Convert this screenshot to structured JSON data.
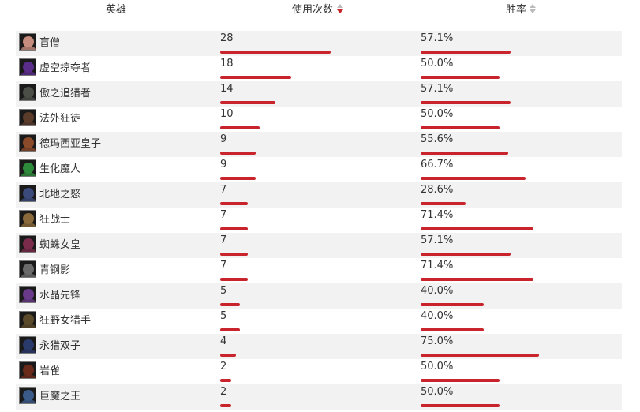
{
  "table": {
    "headers": {
      "hero": "英雄",
      "usage": "使用次数",
      "winrate": "胜率"
    },
    "sort": {
      "usage": "descending",
      "winrate": "none"
    },
    "colors": {
      "bar": "#c9242b",
      "row_alt": "#f2f2f2",
      "sort_active": "#c9242b",
      "sort_inactive": "#bbbbbb"
    },
    "rows": [
      {
        "hero": "盲僧",
        "usage": "28",
        "usage_fraction": 0.44,
        "winrate": "57.1%",
        "winrate_fraction": 0.571,
        "icon": "lee-sin-portrait",
        "tone": "#c58b7c"
      },
      {
        "hero": "虚空掠夺者",
        "usage": "18",
        "usage_fraction": 0.283,
        "winrate": "50.0%",
        "winrate_fraction": 0.5,
        "icon": "khazix-portrait",
        "tone": "#5a2d8a"
      },
      {
        "hero": "傲之追猎者",
        "usage": "14",
        "usage_fraction": 0.22,
        "winrate": "57.1%",
        "winrate_fraction": 0.571,
        "icon": "rengar-portrait",
        "tone": "#4b4e47"
      },
      {
        "hero": "法外狂徒",
        "usage": "10",
        "usage_fraction": 0.157,
        "winrate": "50.0%",
        "winrate_fraction": 0.5,
        "icon": "graves-portrait",
        "tone": "#5b3b2a"
      },
      {
        "hero": "德玛西亚皇子",
        "usage": "9",
        "usage_fraction": 0.141,
        "winrate": "55.6%",
        "winrate_fraction": 0.556,
        "icon": "jarvan-portrait",
        "tone": "#8a4a2a"
      },
      {
        "hero": "生化魔人",
        "usage": "9",
        "usage_fraction": 0.141,
        "winrate": "66.7%",
        "winrate_fraction": 0.667,
        "icon": "zac-portrait",
        "tone": "#2e8a3b"
      },
      {
        "hero": "北地之怒",
        "usage": "7",
        "usage_fraction": 0.11,
        "winrate": "28.6%",
        "winrate_fraction": 0.286,
        "icon": "sejuani-portrait",
        "tone": "#3a4a7a"
      },
      {
        "hero": "狂战士",
        "usage": "7",
        "usage_fraction": 0.11,
        "winrate": "71.4%",
        "winrate_fraction": 0.714,
        "icon": "olaf-portrait",
        "tone": "#8a6a3a"
      },
      {
        "hero": "蜘蛛女皇",
        "usage": "7",
        "usage_fraction": 0.11,
        "winrate": "57.1%",
        "winrate_fraction": 0.571,
        "icon": "elise-portrait",
        "tone": "#7a2a4a"
      },
      {
        "hero": "青钢影",
        "usage": "7",
        "usage_fraction": 0.11,
        "winrate": "71.4%",
        "winrate_fraction": 0.714,
        "icon": "camille-portrait",
        "tone": "#6a6a6a"
      },
      {
        "hero": "水晶先锋",
        "usage": "5",
        "usage_fraction": 0.078,
        "winrate": "40.0%",
        "winrate_fraction": 0.4,
        "icon": "skarner-portrait",
        "tone": "#6a3a8a"
      },
      {
        "hero": "狂野女猎手",
        "usage": "5",
        "usage_fraction": 0.078,
        "winrate": "40.0%",
        "winrate_fraction": 0.4,
        "icon": "nidalee-portrait",
        "tone": "#5a4a2a"
      },
      {
        "hero": "永猎双子",
        "usage": "4",
        "usage_fraction": 0.063,
        "winrate": "75.0%",
        "winrate_fraction": 0.75,
        "icon": "kindred-portrait",
        "tone": "#2a3a6a"
      },
      {
        "hero": "岩雀",
        "usage": "2",
        "usage_fraction": 0.031,
        "winrate": "50.0%",
        "winrate_fraction": 0.5,
        "icon": "taliyah-portrait",
        "tone": "#6a2a1a"
      },
      {
        "hero": "巨魔之王",
        "usage": "2",
        "usage_fraction": 0.031,
        "winrate": "50.0%",
        "winrate_fraction": 0.5,
        "icon": "trundle-portrait",
        "tone": "#3a5a8a"
      }
    ]
  }
}
